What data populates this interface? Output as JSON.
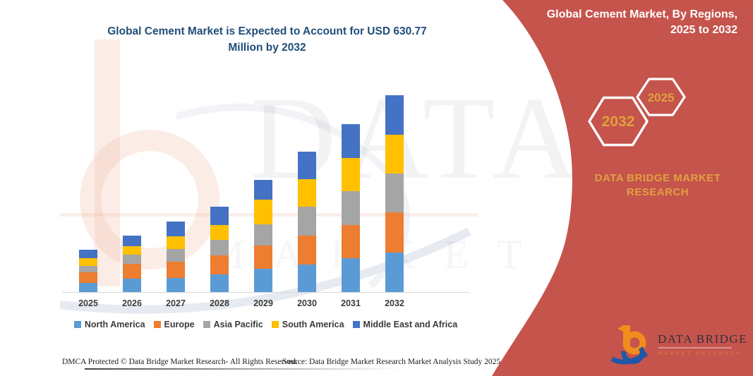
{
  "header": {
    "chart_title": "Global Cement Market is Expected to Account for USD 630.77 Million by 2032"
  },
  "side_panel": {
    "title": "Global Cement Market, By Regions, 2025 to 2032",
    "hexagon_year_large": "2032",
    "hexagon_year_small": "2025",
    "brand_text": "DATA BRIDGE MARKET RESEARCH"
  },
  "logo": {
    "name": "DATA BRIDGE",
    "subtitle": "MARKET RESEARCH"
  },
  "watermark": {
    "line1": "DATA BRIDGE",
    "line2": "MARKET RESEARCH"
  },
  "footer": {
    "dmca": "DMCA Protected © Data Bridge Market Research- All Rights Reserved.",
    "source": "Source: Data Bridge Market Research Market Analysis Study 2025"
  },
  "colors": {
    "panel_red": "#C5544C",
    "accent_gold": "#E0A03E",
    "title_blue": "#1F4E79",
    "axis_gray": "#D9D9D9"
  },
  "chart_data": {
    "type": "bar",
    "stacked": true,
    "title": "Global Cement Market is Expected to Account for USD 630.77 Million by 2032",
    "unit": "USD Million",
    "categories": [
      "2025",
      "2026",
      "2027",
      "2028",
      "2029",
      "2030",
      "2031",
      "2032"
    ],
    "series": [
      {
        "name": "North America",
        "color": "#5B9BD5",
        "values": [
          29.4,
          43.0,
          46.3,
          57.7,
          74.6,
          88.2,
          108.5,
          127.7
        ]
      },
      {
        "name": "Europe",
        "color": "#ED7D31",
        "values": [
          33.9,
          47.5,
          50.9,
          59.9,
          75.7,
          92.7,
          107.4,
          127.7
        ]
      },
      {
        "name": "Asia Pacific",
        "color": "#A5A5A5",
        "values": [
          21.5,
          29.4,
          41.8,
          50.9,
          67.8,
          92.7,
          107.4,
          124.3
        ]
      },
      {
        "name": "South America",
        "color": "#FFC000",
        "values": [
          23.7,
          28.3,
          40.7,
          47.5,
          79.1,
          88.2,
          107.4,
          125.5
        ]
      },
      {
        "name": "Middle East and Africa",
        "color": "#4472C4",
        "values": [
          27.1,
          32.8,
          46.3,
          57.7,
          62.2,
          88.2,
          107.4,
          125.5
        ]
      }
    ],
    "totals_note_2032": "630.77",
    "ylim": [
      0,
      665
    ],
    "grid": false,
    "legend_position": "bottom",
    "xlabel": "",
    "ylabel": ""
  }
}
